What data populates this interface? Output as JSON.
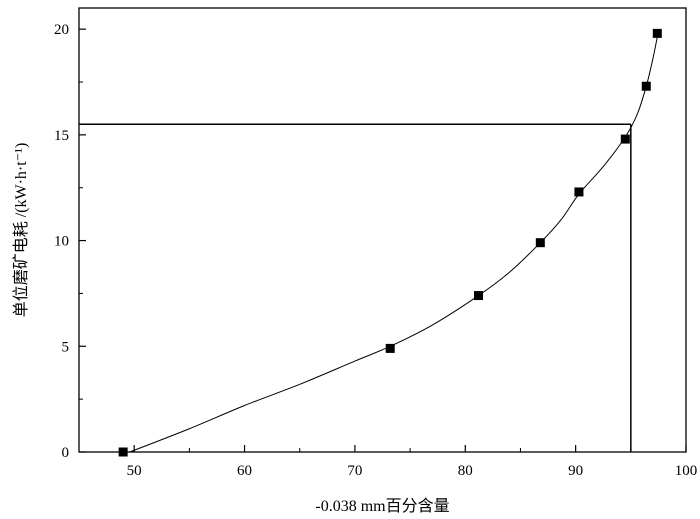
{
  "chart_data": {
    "type": "scatter",
    "title": "",
    "xlabel": "-0.038 mm百分含量",
    "ylabel": "单位磨矿电耗 /(kW·h·t⁻¹)",
    "xlim": [
      45,
      100
    ],
    "ylim": [
      0,
      21
    ],
    "xticks": [
      50,
      60,
      70,
      80,
      90,
      100
    ],
    "yticks": [
      0,
      5,
      10,
      15,
      20
    ],
    "grid": false,
    "legend": "none",
    "series": [
      {
        "points": [
          {
            "x": 49.0,
            "y": 0.0
          },
          {
            "x": 73.2,
            "y": 4.9
          },
          {
            "x": 81.2,
            "y": 7.4
          },
          {
            "x": 86.8,
            "y": 9.9
          },
          {
            "x": 90.3,
            "y": 12.3
          },
          {
            "x": 94.5,
            "y": 14.8
          },
          {
            "x": 96.4,
            "y": 17.3
          },
          {
            "x": 97.4,
            "y": 19.8
          }
        ],
        "marker": "square",
        "color": "#000000"
      }
    ],
    "fit_curve": [
      {
        "x": 49.6,
        "y": 0.0
      },
      {
        "x": 55.0,
        "y": 1.1
      },
      {
        "x": 60.0,
        "y": 2.2
      },
      {
        "x": 65.0,
        "y": 3.2
      },
      {
        "x": 70.0,
        "y": 4.3
      },
      {
        "x": 73.2,
        "y": 5.0
      },
      {
        "x": 77.0,
        "y": 6.0
      },
      {
        "x": 81.2,
        "y": 7.4
      },
      {
        "x": 84.0,
        "y": 8.5
      },
      {
        "x": 86.8,
        "y": 9.9
      },
      {
        "x": 88.7,
        "y": 11.0
      },
      {
        "x": 90.3,
        "y": 12.2
      },
      {
        "x": 92.5,
        "y": 13.5
      },
      {
        "x": 94.5,
        "y": 14.9
      },
      {
        "x": 95.6,
        "y": 16.0
      },
      {
        "x": 96.4,
        "y": 17.3
      },
      {
        "x": 97.0,
        "y": 18.6
      },
      {
        "x": 97.5,
        "y": 19.9
      }
    ],
    "reference_lines": {
      "horizontal_y": 15.5,
      "vertical_x": 95.0
    }
  }
}
